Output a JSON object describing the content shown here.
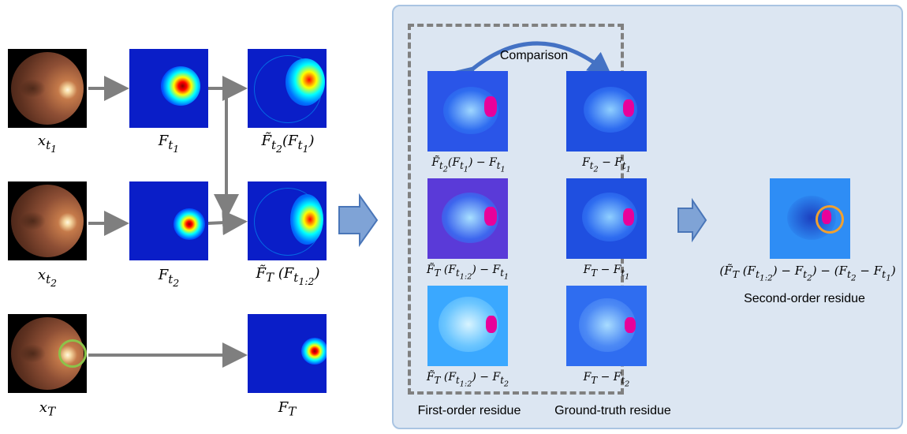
{
  "labels": {
    "x_t1": "x_{t_1}",
    "x_t2": "x_{t_2}",
    "x_T": "x_T",
    "F_t1": "F_{t_1}",
    "F_t2": "F_{t_2}",
    "F_T": "F_T",
    "Ft2_of_Ft1": "F̃_{t_2}(F_{t_1})",
    "FT_of_Ft12": "F̃_T (F_{t_{1:2}})",
    "res_a": "F̃_{t_2}(F_{t_1}) − F_{t_1}",
    "res_b": "F_{t_2} − F_{t_1}",
    "res_c": "F̃_T (F_{t_{1:2}}) − F_{t_1}",
    "res_d": "F_T − F_{t_1}",
    "res_e": "F̃_T (F_{t_{1:2}}) − F_{t_2}",
    "res_f": "F_T − F_{t_2}",
    "second_formula": "(F̃_T (F_{t_{1:2}}) − F_{t_2}) − (F_{t_2} − F_{t_1})"
  },
  "text": {
    "comparison": "Comparison",
    "first_order": "First-order residue",
    "ground_truth": "Ground-truth residue",
    "second_order": "Second-order residue"
  }
}
